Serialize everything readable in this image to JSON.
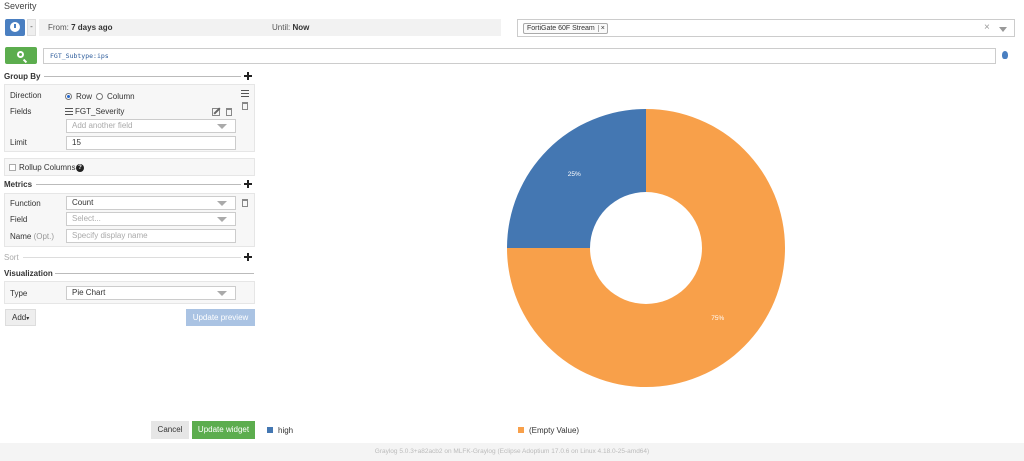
{
  "page": {
    "title": "Severity"
  },
  "timerange": {
    "dropdown_caret": "-",
    "from_label": "From:",
    "from_value": "7 days ago",
    "until_label": "Until:",
    "until_value": "Now"
  },
  "streams": {
    "selected": "FortiGate 60F Stream",
    "remove_symbol": "×",
    "clear_symbol": "×"
  },
  "query": {
    "text": "FGT_Subtype:ips"
  },
  "group_by": {
    "title": "Group By",
    "direction_label": "Direction",
    "row_label": "Row",
    "column_label": "Column",
    "selected_direction": "Row",
    "fields_label": "Fields",
    "field_value": "FGT_Severity",
    "add_field_placeholder": "Add another field",
    "limit_label": "Limit",
    "limit_value": "15"
  },
  "rollup": {
    "label": "Rollup Columns",
    "checked": false,
    "help": "?"
  },
  "metrics": {
    "title": "Metrics",
    "function_label": "Function",
    "function_value": "Count",
    "field_label": "Field",
    "field_placeholder": "Select...",
    "name_label": "Name",
    "name_opt": "(Opt.)",
    "name_placeholder": "Specify display name"
  },
  "sort": {
    "title": "Sort"
  },
  "visualization": {
    "title": "Visualization",
    "type_label": "Type",
    "type_value": "Pie Chart"
  },
  "actions": {
    "add_label": "Add",
    "add_caret": "▾",
    "update_preview": "Update preview",
    "cancel": "Cancel",
    "update_widget": "Update widget"
  },
  "chart_data": {
    "type": "pie",
    "donut": true,
    "slices": [
      {
        "label": "high",
        "value": 25,
        "display": "25%",
        "color": "#4477b2"
      },
      {
        "label": "(Empty Value)",
        "value": 75,
        "display": "75%",
        "color": "#f8a04a"
      }
    ],
    "legend_placement": "bottom"
  },
  "footer": {
    "text": "Graylog 5.0.3+a82acb2 on MLFK-Graylog (Eclipse Adoptium 17.0.6 on Linux 4.18.0-25-amd64)"
  }
}
